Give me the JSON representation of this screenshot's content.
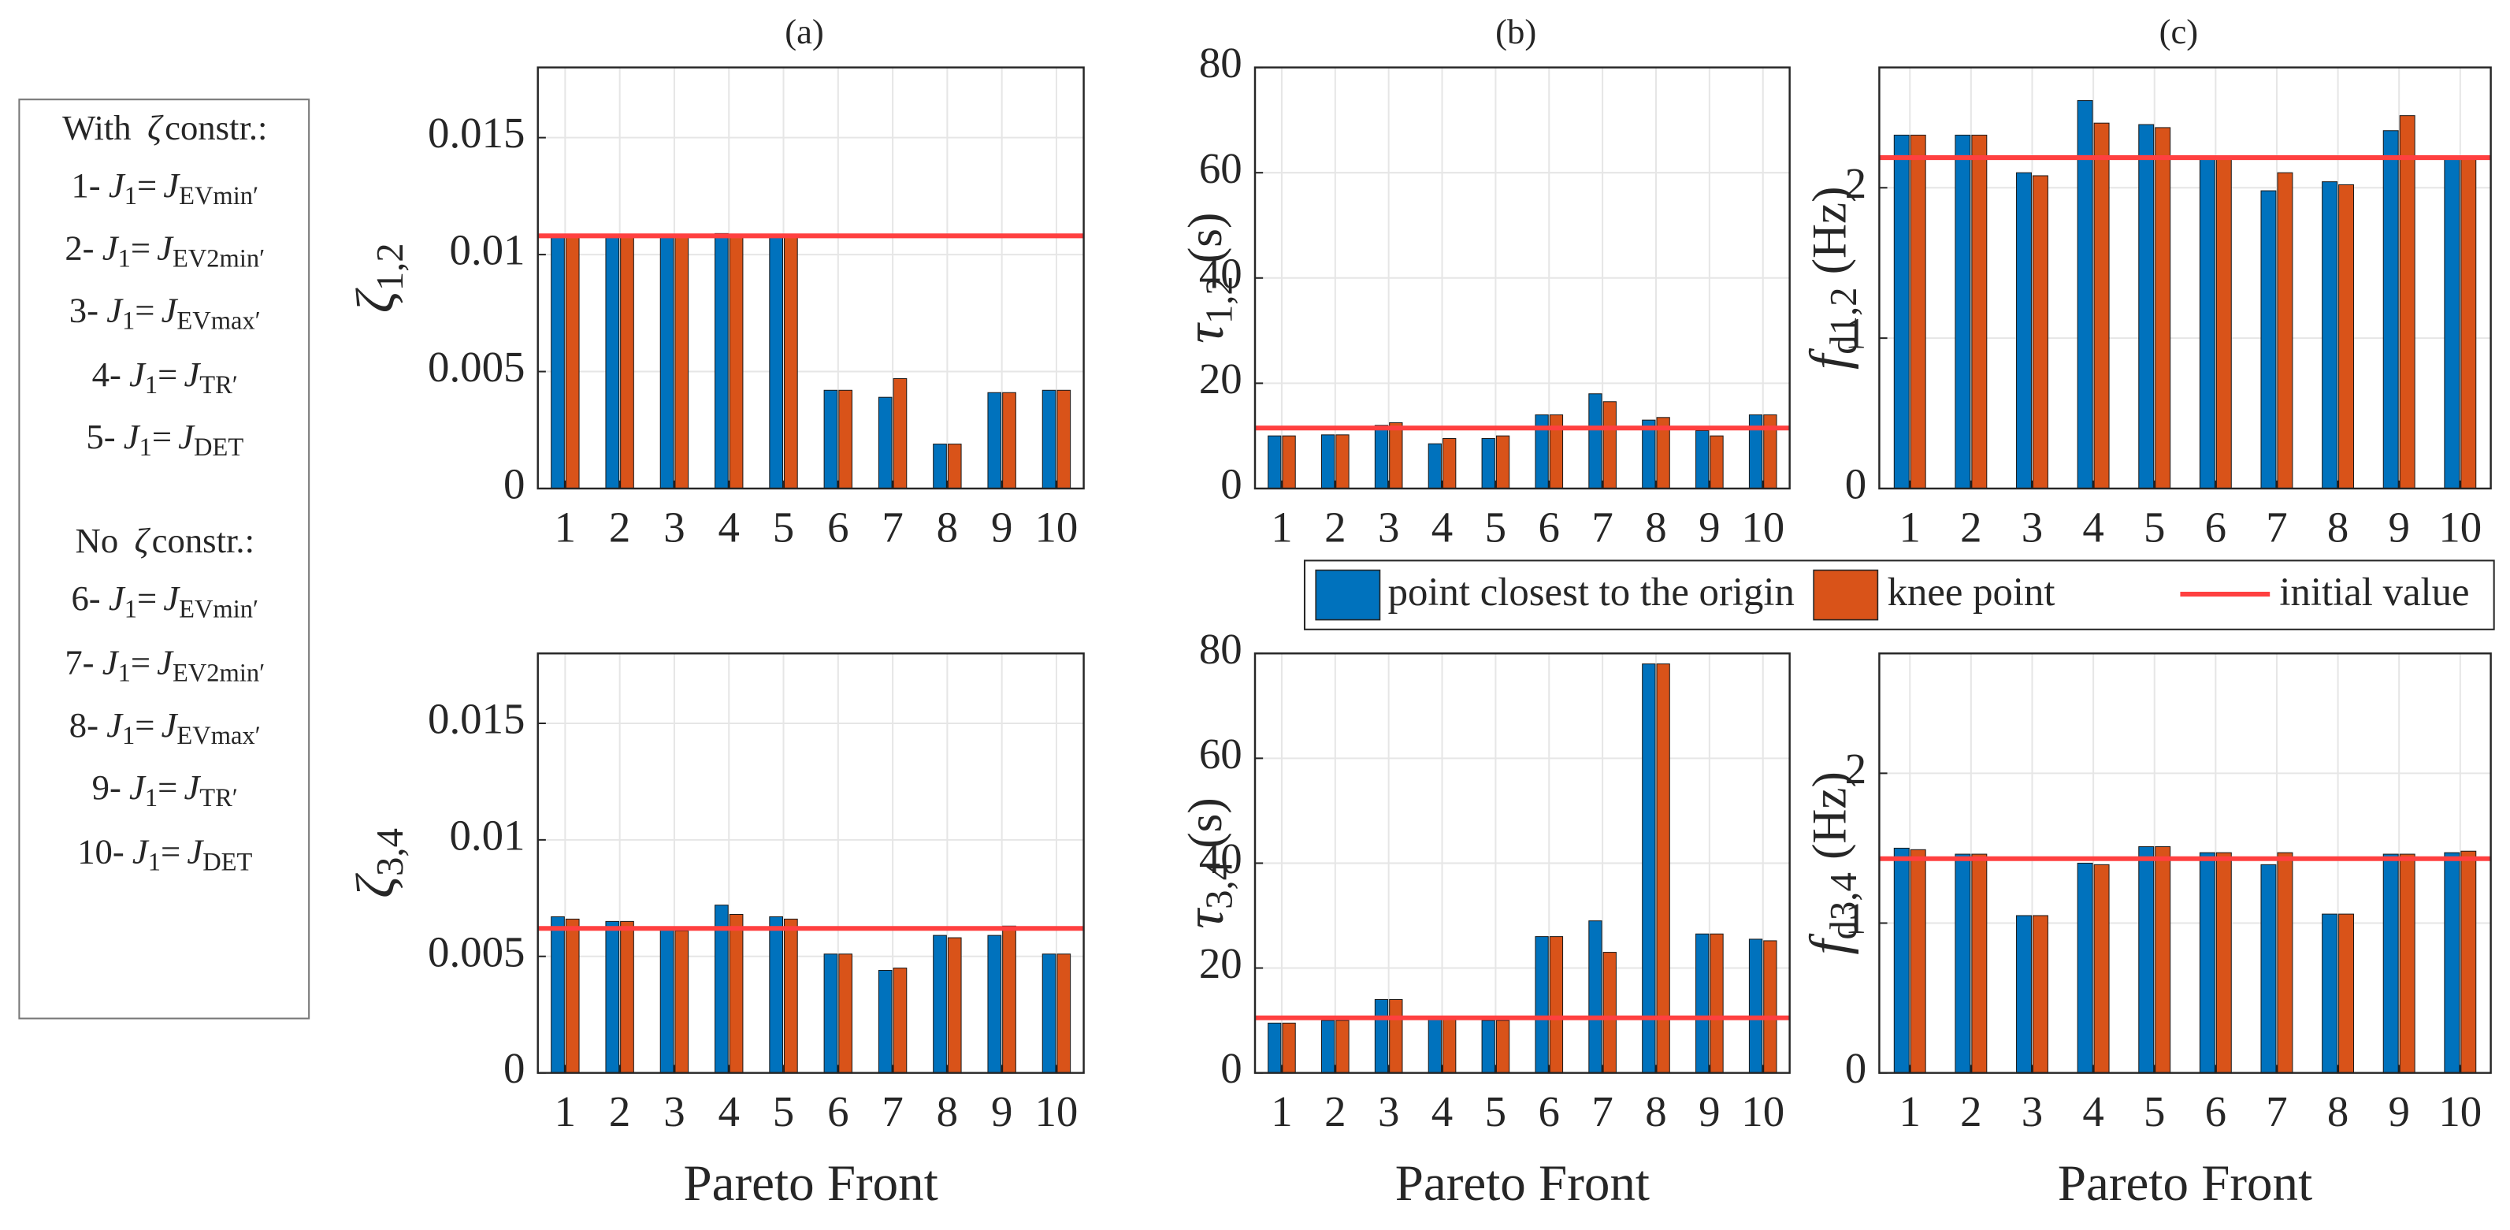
{
  "side_note": {
    "groups": [
      {
        "heading_pre": "With",
        "heading_symbol": "ζ",
        "heading_post": "constr.:",
        "items": [
          {
            "label": "1-",
            "lhs": "J",
            "lhs_sub": "1",
            "eq": "=",
            "rhs": "J",
            "rhs_sub": "EVmin′"
          },
          {
            "label": "2-",
            "lhs": "J",
            "lhs_sub": "1",
            "eq": "=",
            "rhs": "J",
            "rhs_sub": "EV2min′"
          },
          {
            "label": "3-",
            "lhs": "J",
            "lhs_sub": "1",
            "eq": "=",
            "rhs": "J",
            "rhs_sub": "EVmax′"
          },
          {
            "label": "4-",
            "lhs": "J",
            "lhs_sub": "1",
            "eq": "=",
            "rhs": "J",
            "rhs_sub": "TR′"
          },
          {
            "label": "5-",
            "lhs": "J",
            "lhs_sub": "1",
            "eq": "=",
            "rhs": "J",
            "rhs_sub": "DET"
          }
        ]
      },
      {
        "heading_pre": "No",
        "heading_symbol": "ζ",
        "heading_post": "constr.:",
        "items": [
          {
            "label": "6-",
            "lhs": "J",
            "lhs_sub": "1",
            "eq": "=",
            "rhs": "J",
            "rhs_sub": "EVmin′"
          },
          {
            "label": "7-",
            "lhs": "J",
            "lhs_sub": "1",
            "eq": "=",
            "rhs": "J",
            "rhs_sub": "EV2min′"
          },
          {
            "label": "8-",
            "lhs": "J",
            "lhs_sub": "1",
            "eq": "=",
            "rhs": "J",
            "rhs_sub": "EVmax′"
          },
          {
            "label": "9-",
            "lhs": "J",
            "lhs_sub": "1",
            "eq": "=",
            "rhs": "J",
            "rhs_sub": "TR′"
          },
          {
            "label": "10-",
            "lhs": "J",
            "lhs_sub": "1",
            "eq": "=",
            "rhs": "J",
            "rhs_sub": "DET"
          }
        ]
      }
    ]
  },
  "legend": {
    "entries": [
      {
        "name": "point closest to the origin",
        "color": "#0072bd"
      },
      {
        "name": "knee point",
        "color": "#d95319"
      },
      {
        "name": "initial value",
        "color": "#ff4040"
      }
    ]
  },
  "chart_data": [
    {
      "type": "bar",
      "title": "(a)",
      "ylabel": {
        "symbol": "ζ",
        "subscript": "1,2"
      },
      "categories": [
        "1",
        "2",
        "3",
        "4",
        "5",
        "6",
        "7",
        "8",
        "9",
        "10"
      ],
      "series": [
        {
          "values": [
            0.0108,
            0.0108,
            0.0108,
            0.0109,
            0.0108,
            0.0042,
            0.0039,
            0.0019,
            0.0041,
            0.0042
          ]
        },
        {
          "values": [
            0.0108,
            0.0108,
            0.0108,
            0.0108,
            0.0108,
            0.0042,
            0.0047,
            0.0019,
            0.0041,
            0.0042
          ]
        }
      ],
      "initial_value": 0.0108,
      "ylim": [
        0,
        0.018
      ],
      "yticks": [
        0,
        0.005,
        0.01,
        0.015
      ],
      "grid": true
    },
    {
      "type": "bar",
      "title": "(b)",
      "ylabel": {
        "symbol": "τ",
        "subscript": "1,2",
        "unit": "(s)"
      },
      "categories": [
        "1",
        "2",
        "3",
        "4",
        "5",
        "6",
        "7",
        "8",
        "9",
        "10"
      ],
      "series": [
        {
          "values": [
            10,
            10.2,
            12,
            8.5,
            9.5,
            14,
            18,
            13,
            11,
            14
          ]
        },
        {
          "values": [
            10,
            10.2,
            12.5,
            9.5,
            10,
            14,
            16.5,
            13.5,
            10,
            14
          ]
        }
      ],
      "initial_value": 11.5,
      "ylim": [
        0,
        80
      ],
      "yticks": [
        0,
        20,
        40,
        60,
        80
      ],
      "grid": true
    },
    {
      "type": "bar",
      "title": "(c)",
      "ylabel": {
        "symbol": "f",
        "subscript": "d1,2",
        "unit": "(Hz)"
      },
      "categories": [
        "1",
        "2",
        "3",
        "4",
        "5",
        "6",
        "7",
        "8",
        "9",
        "10"
      ],
      "series": [
        {
          "values": [
            2.35,
            2.35,
            2.1,
            2.58,
            2.42,
            2.2,
            1.98,
            2.04,
            2.38,
            2.2
          ]
        },
        {
          "values": [
            2.35,
            2.35,
            2.08,
            2.43,
            2.4,
            2.2,
            2.1,
            2.02,
            2.48,
            2.2
          ]
        }
      ],
      "initial_value": 2.2,
      "ylim": [
        0,
        2.8
      ],
      "yticks": [
        0,
        1,
        2
      ],
      "grid": true
    },
    {
      "type": "bar",
      "xlabel": "Pareto Front",
      "ylabel": {
        "symbol": "ζ",
        "subscript": "3,4"
      },
      "categories": [
        "1",
        "2",
        "3",
        "4",
        "5",
        "6",
        "7",
        "8",
        "9",
        "10"
      ],
      "series": [
        {
          "values": [
            0.0067,
            0.0065,
            0.0062,
            0.0072,
            0.0067,
            0.0051,
            0.0044,
            0.0059,
            0.0059,
            0.0051
          ]
        },
        {
          "values": [
            0.0066,
            0.0065,
            0.0061,
            0.0068,
            0.0066,
            0.0051,
            0.0045,
            0.0058,
            0.0063,
            0.0051
          ]
        }
      ],
      "initial_value": 0.0062,
      "ylim": [
        0,
        0.018
      ],
      "yticks": [
        0,
        0.005,
        0.01,
        0.015
      ],
      "grid": true
    },
    {
      "type": "bar",
      "xlabel": "Pareto Front",
      "ylabel": {
        "symbol": "τ",
        "subscript": "3,4",
        "unit": "(s)"
      },
      "categories": [
        "1",
        "2",
        "3",
        "4",
        "5",
        "6",
        "7",
        "8",
        "9",
        "10"
      ],
      "series": [
        {
          "values": [
            9.5,
            10,
            14,
            10.5,
            10,
            26,
            29,
            78,
            26.5,
            25.5
          ]
        },
        {
          "values": [
            9.5,
            10,
            14,
            10.5,
            10,
            26,
            23,
            78,
            26.5,
            25.2
          ]
        }
      ],
      "initial_value": 10.5,
      "ylim": [
        0,
        80
      ],
      "yticks": [
        0,
        20,
        40,
        60,
        80
      ],
      "grid": true
    },
    {
      "type": "bar",
      "xlabel": "Pareto Front",
      "ylabel": {
        "symbol": "f",
        "subscript": "d3,4",
        "unit": "(Hz)"
      },
      "categories": [
        "1",
        "2",
        "3",
        "4",
        "5",
        "6",
        "7",
        "8",
        "9",
        "10"
      ],
      "series": [
        {
          "values": [
            1.5,
            1.46,
            1.05,
            1.4,
            1.51,
            1.47,
            1.39,
            1.06,
            1.46,
            1.47
          ]
        },
        {
          "values": [
            1.49,
            1.46,
            1.05,
            1.39,
            1.51,
            1.47,
            1.47,
            1.06,
            1.46,
            1.48
          ]
        }
      ],
      "initial_value": 1.43,
      "ylim": [
        0,
        2.8
      ],
      "yticks": [
        0,
        1,
        2
      ],
      "grid": true
    }
  ]
}
